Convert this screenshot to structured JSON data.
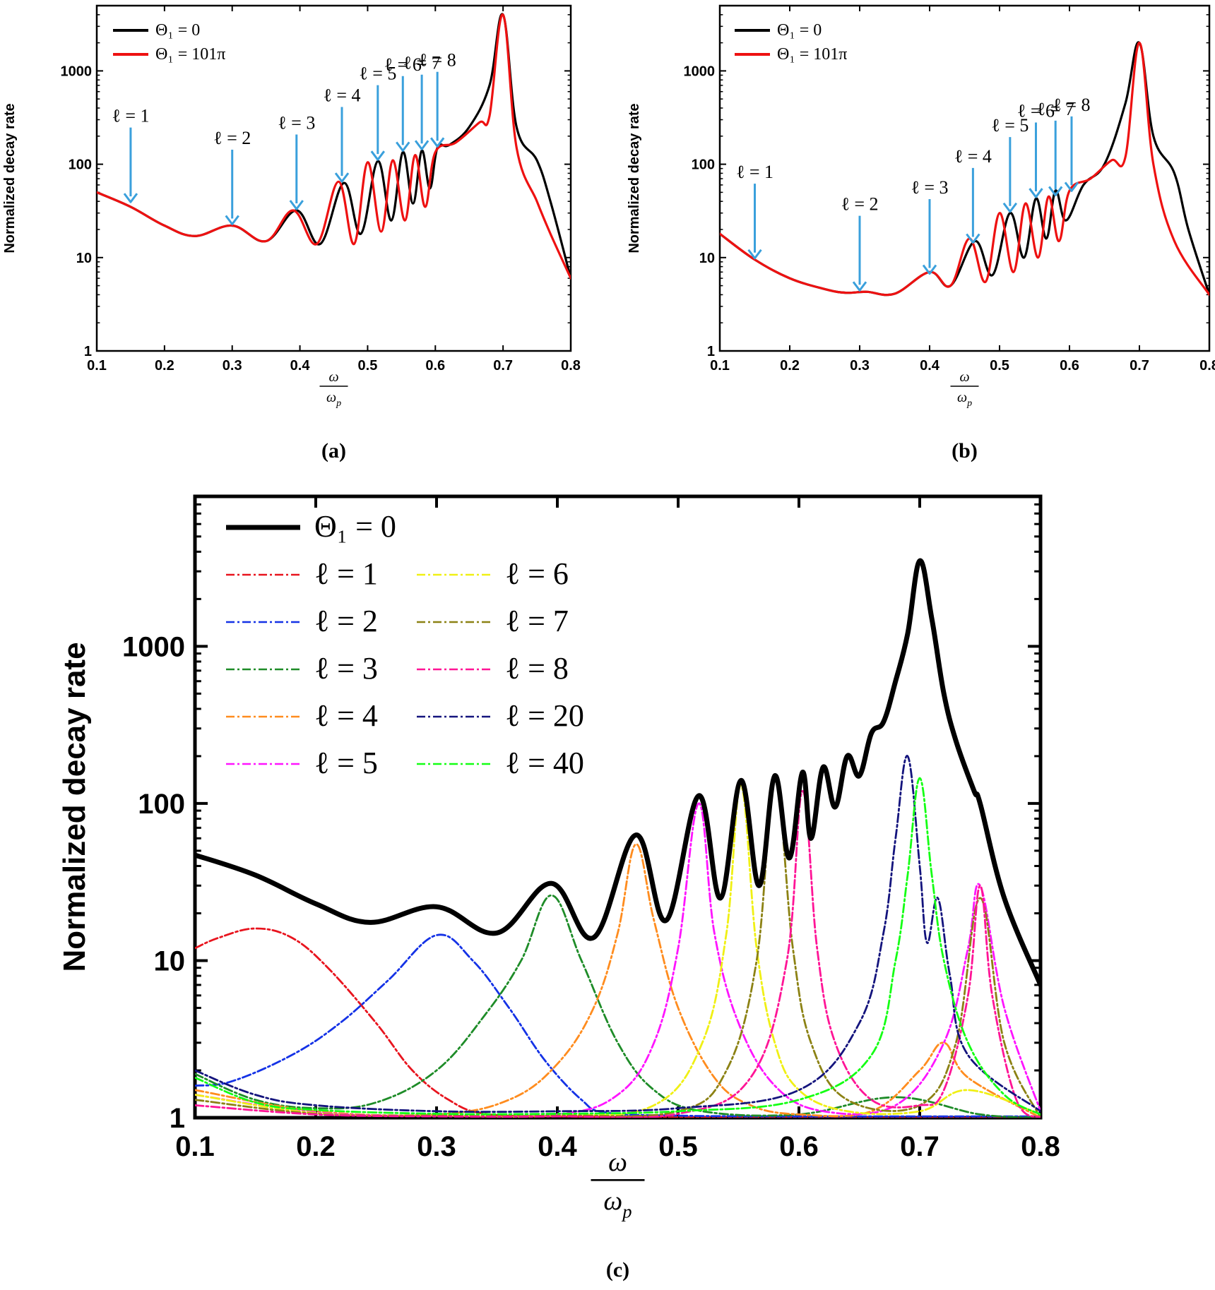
{
  "chart_data": [
    {
      "type": "line",
      "panel_label": "(a)",
      "ylabel": "Normalized decay rate",
      "xlabel_num": "ω",
      "xlabel_den": "ω",
      "xlabel_den_sub": "p",
      "xlim": [
        0.1,
        0.8
      ],
      "ylim": [
        1,
        5000
      ],
      "yscale": "log",
      "xticks": [
        "0.1",
        "0.2",
        "0.3",
        "0.4",
        "0.5",
        "0.6",
        "0.7",
        "0.8"
      ],
      "yticks": [
        "1",
        "10",
        "100",
        "1000"
      ],
      "legend": {
        "placement": "top-left",
        "entries": [
          "Θ₁ = 0",
          "Θ₁ = 101π"
        ]
      },
      "series": [
        {
          "name": "Θ₁ = 0",
          "color": "#000000",
          "x": [
            0.1,
            0.15,
            0.2,
            0.245,
            0.3,
            0.35,
            0.395,
            0.43,
            0.465,
            0.49,
            0.515,
            0.535,
            0.552,
            0.567,
            0.58,
            0.592,
            0.603,
            0.62,
            0.65,
            0.68,
            0.7,
            0.72,
            0.75,
            0.77,
            0.8
          ],
          "y": [
            50,
            35,
            22,
            17,
            22,
            15,
            32,
            14,
            63,
            18,
            108,
            25,
            135,
            38,
            140,
            55,
            150,
            160,
            250,
            700,
            4000,
            250,
            110,
            40,
            6
          ]
        },
        {
          "name": "Θ₁ = 101π",
          "color": "#ee1111",
          "x": [
            0.1,
            0.15,
            0.2,
            0.245,
            0.3,
            0.35,
            0.39,
            0.425,
            0.457,
            0.48,
            0.5,
            0.52,
            0.537,
            0.555,
            0.57,
            0.585,
            0.6,
            0.63,
            0.665,
            0.68,
            0.7,
            0.72,
            0.75,
            0.77,
            0.8
          ],
          "y": [
            50,
            35,
            22,
            17,
            22,
            15,
            32,
            14,
            65,
            14,
            105,
            19,
            110,
            25,
            125,
            35,
            135,
            170,
            280,
            330,
            4000,
            150,
            40,
            18,
            6
          ]
        }
      ],
      "annotations": [
        {
          "text": "ℓ = 1",
          "x": 0.15,
          "y": 38
        },
        {
          "text": "ℓ = 2",
          "x": 0.3,
          "y": 22
        },
        {
          "text": "ℓ = 3",
          "x": 0.395,
          "y": 32
        },
        {
          "text": "ℓ = 4",
          "x": 0.462,
          "y": 63
        },
        {
          "text": "ℓ = 5",
          "x": 0.515,
          "y": 108
        },
        {
          "text": "ℓ = 6",
          "x": 0.552,
          "y": 135
        },
        {
          "text": "ℓ = 7",
          "x": 0.58,
          "y": 140
        },
        {
          "text": "ℓ = 8",
          "x": 0.603,
          "y": 150
        }
      ]
    },
    {
      "type": "line",
      "panel_label": "(b)",
      "ylabel": "Normalized decay rate",
      "xlabel_num": "ω",
      "xlabel_den": "ω",
      "xlabel_den_sub": "p",
      "xlim": [
        0.1,
        0.8
      ],
      "ylim": [
        1,
        5000
      ],
      "yscale": "log",
      "xticks": [
        "0.1",
        "0.2",
        "0.3",
        "0.4",
        "0.5",
        "0.6",
        "0.7",
        "0.8"
      ],
      "yticks": [
        "1",
        "10",
        "100",
        "1000"
      ],
      "legend": {
        "placement": "top-left",
        "entries": [
          "Θ₁ = 0",
          "Θ₁ = 101π"
        ]
      },
      "series": [
        {
          "name": "Θ₁ = 0",
          "color": "#000000",
          "x": [
            0.1,
            0.15,
            0.2,
            0.25,
            0.28,
            0.31,
            0.35,
            0.4,
            0.43,
            0.465,
            0.49,
            0.515,
            0.535,
            0.552,
            0.567,
            0.58,
            0.595,
            0.62,
            0.65,
            0.68,
            0.7,
            0.72,
            0.75,
            0.77,
            0.8
          ],
          "y": [
            18,
            9.5,
            6,
            4.6,
            4.2,
            4.3,
            4.1,
            7,
            5,
            15,
            6.5,
            30,
            10,
            43,
            16,
            52,
            25,
            60,
            100,
            450,
            2000,
            200,
            80,
            20,
            4
          ]
        },
        {
          "name": "Θ₁ = 101π",
          "color": "#ee1111",
          "x": [
            0.1,
            0.15,
            0.2,
            0.25,
            0.28,
            0.31,
            0.35,
            0.4,
            0.43,
            0.457,
            0.48,
            0.5,
            0.52,
            0.537,
            0.555,
            0.57,
            0.585,
            0.6,
            0.63,
            0.66,
            0.68,
            0.7,
            0.72,
            0.75,
            0.8
          ],
          "y": [
            18,
            9.5,
            6,
            4.6,
            4.2,
            4.3,
            4.1,
            7,
            5,
            16,
            5.5,
            30,
            7,
            38,
            10,
            45,
            15,
            52,
            70,
            110,
            120,
            2000,
            100,
            15,
            4
          ]
        }
      ],
      "annotations": [
        {
          "text": "ℓ = 1",
          "x": 0.15,
          "y": 9.5
        },
        {
          "text": "ℓ = 2",
          "x": 0.3,
          "y": 4.3
        },
        {
          "text": "ℓ = 3",
          "x": 0.4,
          "y": 6.5
        },
        {
          "text": "ℓ = 4",
          "x": 0.462,
          "y": 14
        },
        {
          "text": "ℓ = 5",
          "x": 0.515,
          "y": 30
        },
        {
          "text": "ℓ = 6",
          "x": 0.552,
          "y": 43
        },
        {
          "text": "ℓ = 7",
          "x": 0.58,
          "y": 45
        },
        {
          "text": "ℓ = 8",
          "x": 0.603,
          "y": 50
        }
      ]
    },
    {
      "type": "line",
      "panel_label": "(c)",
      "ylabel": "Normalized decay rate",
      "xlabel_num": "ω",
      "xlabel_den": "ω",
      "xlabel_den_sub": "p",
      "xlim": [
        0.1,
        0.8
      ],
      "ylim": [
        1,
        9000
      ],
      "yscale": "log",
      "xticks": [
        "0.1",
        "0.2",
        "0.3",
        "0.4",
        "0.5",
        "0.6",
        "0.7",
        "0.8"
      ],
      "yticks": [
        "1",
        "10",
        "100",
        "1000"
      ],
      "legend": {
        "placement": "top-left",
        "columns": 2
      },
      "series": [
        {
          "name": "Θ₁ = 0",
          "color": "#000000",
          "style": "solid",
          "x": [
            0.1,
            0.15,
            0.2,
            0.245,
            0.3,
            0.35,
            0.395,
            0.43,
            0.465,
            0.49,
            0.517,
            0.535,
            0.552,
            0.567,
            0.58,
            0.592,
            0.603,
            0.61,
            0.62,
            0.63,
            0.64,
            0.65,
            0.66,
            0.67,
            0.68,
            0.69,
            0.7,
            0.71,
            0.72,
            0.73,
            0.745,
            0.75,
            0.77,
            0.8
          ],
          "y": [
            47,
            35,
            23,
            17.5,
            22,
            15,
            31,
            14,
            63,
            18,
            112,
            25,
            140,
            30,
            150,
            45,
            158,
            60,
            170,
            95,
            200,
            150,
            280,
            330,
            600,
            1200,
            3500,
            1500,
            500,
            250,
            120,
            100,
            25,
            7
          ]
        },
        {
          "name": "ℓ = 1",
          "color": "#e8141e",
          "style": "dashdot",
          "x": [
            0.1,
            0.12,
            0.15,
            0.18,
            0.21,
            0.25,
            0.28,
            0.31,
            0.34,
            0.4,
            0.5,
            0.6,
            0.7,
            0.8
          ],
          "y": [
            12,
            14,
            16,
            14,
            9,
            4,
            2,
            1.3,
            1.06,
            1.02,
            1.01,
            1.01,
            1.0,
            1.0
          ]
        },
        {
          "name": "ℓ = 2",
          "color": "#1432e6",
          "style": "dashdot",
          "x": [
            0.1,
            0.13,
            0.18,
            0.22,
            0.26,
            0.3,
            0.33,
            0.36,
            0.39,
            0.42,
            0.44,
            0.5,
            0.6,
            0.7,
            0.8
          ],
          "y": [
            1.6,
            1.7,
            2.5,
            4,
            7.5,
            14.5,
            10,
            5,
            2.3,
            1.3,
            1.08,
            1.03,
            1.02,
            1.02,
            1.02
          ]
        },
        {
          "name": "ℓ = 3",
          "color": "#1e8c28",
          "style": "dashdot",
          "x": [
            0.1,
            0.15,
            0.2,
            0.25,
            0.3,
            0.34,
            0.37,
            0.395,
            0.42,
            0.45,
            0.48,
            0.52,
            0.6,
            0.68,
            0.75,
            0.8
          ],
          "y": [
            1.9,
            1.3,
            1.15,
            1.25,
            2,
            4.5,
            10,
            26,
            10,
            3,
            1.5,
            1.1,
            1.05,
            1.35,
            1.05,
            1.0
          ]
        },
        {
          "name": "ℓ = 4",
          "color": "#ff8c1e",
          "style": "dashdot",
          "x": [
            0.1,
            0.2,
            0.3,
            0.36,
            0.4,
            0.43,
            0.45,
            0.465,
            0.48,
            0.5,
            0.53,
            0.56,
            0.6,
            0.66,
            0.7,
            0.72,
            0.74,
            0.8
          ],
          "y": [
            1.5,
            1.1,
            1.05,
            1.3,
            2.2,
            5,
            15,
            55,
            18,
            5,
            1.8,
            1.2,
            1.05,
            1.1,
            2,
            3,
            1.8,
            1.0
          ]
        },
        {
          "name": "ℓ = 5",
          "color": "#ff14ff",
          "style": "dashdot",
          "x": [
            0.1,
            0.2,
            0.3,
            0.4,
            0.45,
            0.48,
            0.5,
            0.517,
            0.53,
            0.55,
            0.58,
            0.62,
            0.68,
            0.72,
            0.74,
            0.75,
            0.77,
            0.8
          ],
          "y": [
            1.4,
            1.08,
            1.03,
            1.05,
            1.4,
            3,
            12,
            100,
            15,
            4,
            1.6,
            1.1,
            1.2,
            3,
            12,
            30,
            5,
            1.1
          ]
        },
        {
          "name": "ℓ = 6",
          "color": "#f0f014",
          "style": "dashdot",
          "x": [
            0.1,
            0.2,
            0.3,
            0.4,
            0.48,
            0.52,
            0.54,
            0.552,
            0.565,
            0.58,
            0.6,
            0.64,
            0.7,
            0.74,
            0.8
          ],
          "y": [
            1.4,
            1.07,
            1.03,
            1.03,
            1.2,
            3,
            15,
            130,
            12,
            3,
            1.5,
            1.1,
            1.1,
            1.5,
            1.05
          ]
        },
        {
          "name": "ℓ = 7",
          "color": "#8c8214",
          "style": "dashdot",
          "x": [
            0.1,
            0.2,
            0.3,
            0.4,
            0.5,
            0.54,
            0.565,
            0.58,
            0.595,
            0.61,
            0.64,
            0.7,
            0.73,
            0.75,
            0.77,
            0.8
          ],
          "y": [
            1.3,
            1.06,
            1.03,
            1.03,
            1.1,
            2,
            10,
            140,
            12,
            3,
            1.3,
            1.2,
            3,
            25,
            3,
            1.0
          ]
        },
        {
          "name": "ℓ = 8",
          "color": "#ff1496",
          "style": "dashdot",
          "x": [
            0.1,
            0.2,
            0.3,
            0.4,
            0.5,
            0.56,
            0.59,
            0.603,
            0.615,
            0.63,
            0.66,
            0.7,
            0.72,
            0.74,
            0.75,
            0.76,
            0.78,
            0.8
          ],
          "y": [
            1.2,
            1.05,
            1.02,
            1.02,
            1.06,
            1.8,
            10,
            120,
            12,
            3,
            1.3,
            1.2,
            1.5,
            6,
            30,
            6,
            1.3,
            1.0
          ]
        },
        {
          "name": "ℓ = 20",
          "color": "#14147d",
          "style": "dashdot",
          "x": [
            0.1,
            0.15,
            0.2,
            0.3,
            0.4,
            0.5,
            0.6,
            0.65,
            0.67,
            0.68,
            0.69,
            0.7,
            0.706,
            0.715,
            0.725,
            0.74,
            0.8
          ],
          "y": [
            2,
            1.4,
            1.2,
            1.1,
            1.1,
            1.15,
            1.5,
            4,
            15,
            60,
            200,
            40,
            13,
            25,
            8,
            2.5,
            1.1
          ]
        },
        {
          "name": "ℓ = 40",
          "color": "#14ff14",
          "style": "dashdot",
          "x": [
            0.1,
            0.15,
            0.2,
            0.3,
            0.4,
            0.5,
            0.6,
            0.66,
            0.68,
            0.69,
            0.7,
            0.71,
            0.72,
            0.74,
            0.77,
            0.8
          ],
          "y": [
            1.8,
            1.25,
            1.12,
            1.06,
            1.06,
            1.1,
            1.3,
            2.5,
            10,
            35,
            145,
            35,
            10,
            3,
            1.4,
            1.05
          ]
        }
      ]
    }
  ]
}
